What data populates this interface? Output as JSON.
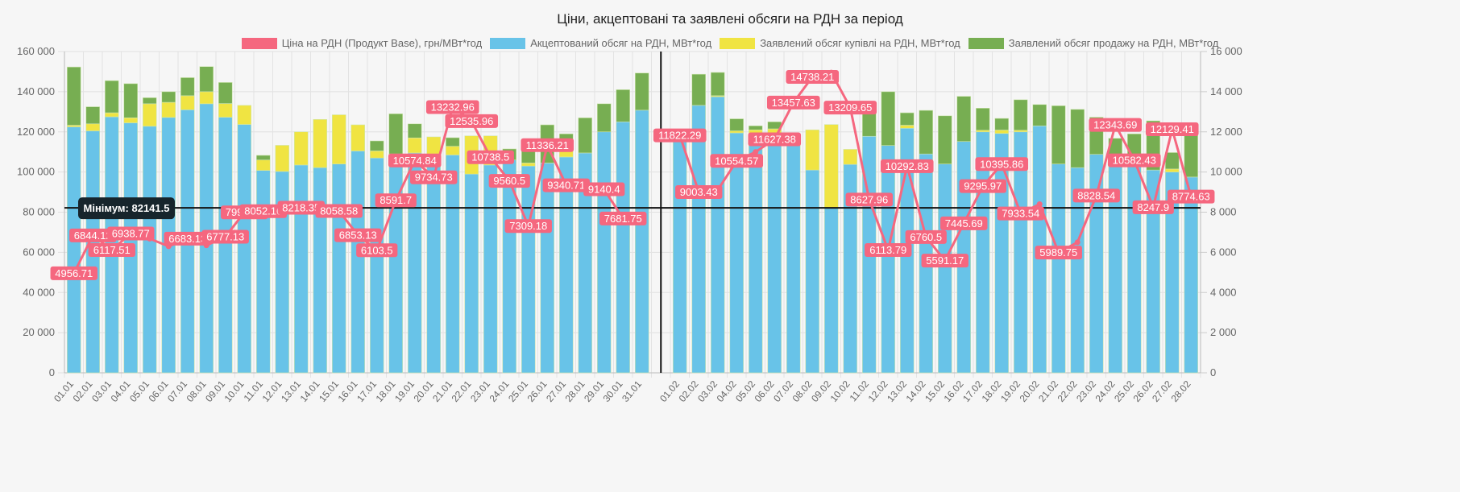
{
  "chart_data": {
    "type": "bar",
    "title": "Ціни, акцептовані та заявлені обсяги на РДН за період",
    "stacked": true,
    "legend_position": "top",
    "grid": true,
    "categories": [
      "01.01",
      "02.01",
      "03.01",
      "04.01",
      "05.01",
      "06.01",
      "07.01",
      "08.01",
      "09.01",
      "10.01",
      "11.01",
      "12.01",
      "13.01",
      "14.01",
      "15.01",
      "16.01",
      "17.01",
      "18.01",
      "19.01",
      "20.01",
      "21.01",
      "22.01",
      "23.01",
      "24.01",
      "25.01",
      "26.01",
      "27.01",
      "28.01",
      "29.01",
      "30.01",
      "31.01",
      "",
      "01.02",
      "02.02",
      "03.02",
      "04.02",
      "05.02",
      "06.02",
      "07.02",
      "08.02",
      "09.02",
      "10.02",
      "11.02",
      "12.02",
      "13.02",
      "14.02",
      "15.02",
      "16.02",
      "17.02",
      "18.02",
      "19.02",
      "20.02",
      "21.02",
      "22.02",
      "23.02",
      "24.02",
      "25.02",
      "26.02",
      "27.02",
      "28.02"
    ],
    "y_left": {
      "label": "",
      "ylim": [
        0,
        160000
      ],
      "ticks": [
        "0",
        "20 000",
        "40 000",
        "60 000",
        "80 000",
        "100 000",
        "120 000",
        "140 000",
        "160 000"
      ]
    },
    "y_right": {
      "label": "",
      "ylim": [
        0,
        16000
      ],
      "ticks": [
        "0",
        "2 000",
        "4 000",
        "6 000",
        "8 000",
        "10 000",
        "12 000",
        "14 000",
        "16 000"
      ]
    },
    "series": [
      {
        "name": "Ціна на РДН (Продукт Base), грн/МВт*год",
        "type": "line",
        "axis": "right",
        "color": "#f5677f",
        "values": [
          4956.71,
          6844.12,
          6117.51,
          6938.77,
          6683.13,
          6300,
          6683.13,
          6350,
          6777.13,
          7991.24,
          8052.16,
          8052.16,
          8218.35,
          8218.35,
          8058.58,
          6853.13,
          6103.5,
          8591.7,
          10574.84,
          9734.73,
          13232.96,
          12535.96,
          10738.5,
          9560.5,
          7309.18,
          11336.21,
          9340.71,
          9140.4,
          9140.4,
          7681.75,
          7681.75,
          null,
          11822.29,
          9003.43,
          9100,
          10554.57,
          11000,
          11627.38,
          13457.63,
          14738.21,
          14950,
          13209.65,
          8627.96,
          6113.79,
          10292.83,
          6760.5,
          5591.17,
          7445.69,
          9295.97,
          10395.86,
          7933.54,
          8400,
          5989.75,
          6500,
          8828.54,
          12343.69,
          10582.43,
          8247.9,
          12129.41,
          8774.63
        ],
        "labels": [
          "4956.71",
          "6844.12",
          "6117.51",
          "6938.77",
          "",
          "",
          "6683.13",
          "",
          "6777.13",
          "7991.24",
          "8052.16",
          "",
          "8218.35",
          "",
          "8058.58",
          "6853.13",
          "6103.5",
          "8591.7",
          "10574.84",
          "9734.73",
          "13232.96",
          "12535.96",
          "10738.5",
          "9560.5",
          "7309.18",
          "11336.21",
          "9340.71",
          "",
          "9140.4",
          "7681.75",
          "",
          "",
          "11822.29",
          "9003.43",
          "",
          "10554.57",
          "",
          "11627.38",
          "13457.63",
          "14738.21",
          "",
          "13209.65",
          "8627.96",
          "6113.79",
          "10292.83",
          "6760.5",
          "5591.17",
          "7445.69",
          "9295.97",
          "10395.86",
          "7933.54",
          "",
          "5989.75",
          "",
          "8828.54",
          "12343.69",
          "10582.43",
          "8247.9",
          "12129.41",
          "8774.63"
        ]
      },
      {
        "name": "Акцептований обсяг на РДН, МВт*год",
        "type": "bar",
        "axis": "left",
        "color": "#68c3e8",
        "values": [
          122500,
          120500,
          127500,
          124500,
          122800,
          127200,
          131000,
          134000,
          127300,
          123700,
          100800,
          100300,
          103500,
          102200,
          104000,
          110500,
          107000,
          109000,
          109500,
          109000,
          108500,
          99000,
          103500,
          106000,
          103000,
          104500,
          107500,
          109500,
          120000,
          125000,
          130800,
          null,
          115500,
          133200,
          137500,
          119500,
          118000,
          119500,
          114500,
          101000,
          82141.5,
          103800,
          117800,
          113200,
          121800,
          109000,
          104000,
          115200,
          120000,
          119200,
          120000,
          123000,
          104000,
          102200,
          108800,
          105800,
          103000,
          101000,
          100000,
          97500
        ]
      },
      {
        "name": "Заявлений обсяг купівлі на РДН, МВт*год",
        "type": "bar",
        "axis": "left",
        "color": "#f0e442",
        "values": [
          800,
          3500,
          2000,
          2500,
          11200,
          7500,
          7000,
          6000,
          6800,
          9500,
          5200,
          13000,
          16500,
          24000,
          24500,
          13000,
          3500,
          0,
          7500,
          8500,
          4300,
          19000,
          14500,
          0,
          1500,
          0,
          4500,
          0,
          0,
          0,
          0,
          null,
          5800,
          0,
          500,
          1000,
          3000,
          2000,
          2500,
          20000,
          41500,
          7500,
          0,
          0,
          1500,
          0,
          0,
          0,
          800,
          1700,
          800,
          0,
          0,
          0,
          0,
          2000,
          0,
          0,
          1500,
          0
        ]
      },
      {
        "name": "Заявлений обсяг продажу на РДН, МВт*год",
        "type": "bar",
        "axis": "left",
        "color": "#77ae52",
        "values": [
          29000,
          8500,
          16000,
          17000,
          3000,
          5300,
          9000,
          12500,
          10500,
          0,
          2300,
          0,
          0,
          0,
          0,
          0,
          5000,
          20000,
          7000,
          0,
          4300,
          0,
          0,
          5500,
          9500,
          19000,
          7000,
          17500,
          14000,
          16000,
          18500,
          null,
          0,
          15500,
          11600,
          6000,
          2000,
          3500,
          0,
          0,
          0,
          0,
          13000,
          26800,
          6200,
          21700,
          24000,
          22500,
          11000,
          5800,
          15200,
          10600,
          29000,
          29000,
          18500,
          9000,
          16000,
          24500,
          8200,
          24500
        ]
      }
    ],
    "annotations": [
      {
        "type": "hline",
        "axis": "left",
        "value": 82141.5,
        "label": "Мінімум: 82141.5",
        "color": "#111111"
      },
      {
        "type": "vline",
        "between": [
          "31.01",
          "01.02"
        ],
        "color": "#111111"
      }
    ]
  }
}
